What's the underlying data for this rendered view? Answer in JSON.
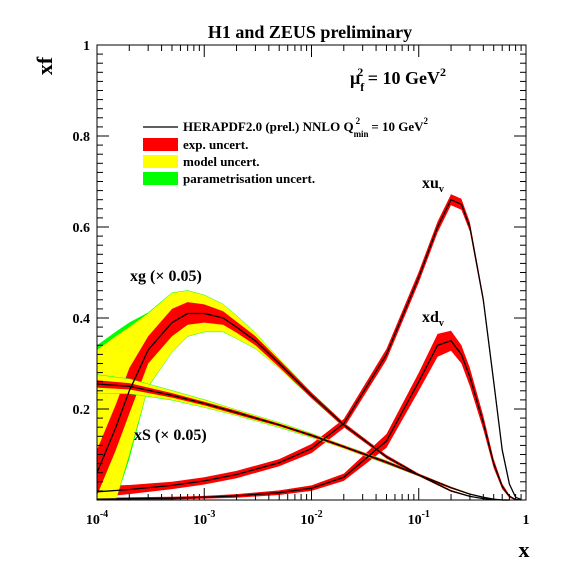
{
  "chart_data": {
    "type": "line",
    "title": "H1 and ZEUS preliminary",
    "scale_label": {
      "prefix": "μ",
      "sub": "f",
      "sup": "2",
      "text": " = 10 GeV",
      "unit_sup": "2"
    },
    "xlabel": "x",
    "ylabel": "xf",
    "x_scale": "log",
    "xlim": [
      0.0001,
      1
    ],
    "ylim": [
      0,
      1
    ],
    "x_ticks": [
      {
        "value": 0.0001,
        "base": "10",
        "exp": "-4"
      },
      {
        "value": 0.001,
        "base": "10",
        "exp": "-3"
      },
      {
        "value": 0.01,
        "base": "10",
        "exp": "-2"
      },
      {
        "value": 0.1,
        "base": "10",
        "exp": "-1"
      },
      {
        "value": 1,
        "base": "1",
        "exp": ""
      }
    ],
    "y_ticks": [
      {
        "value": 0.2,
        "label": "0.2"
      },
      {
        "value": 0.4,
        "label": "0.4"
      },
      {
        "value": 0.6,
        "label": "0.6"
      },
      {
        "value": 0.8,
        "label": "0.8"
      },
      {
        "value": 1.0,
        "label": "1"
      }
    ],
    "legend": {
      "position": "top-left",
      "entries": [
        {
          "kind": "line",
          "color": "#000000",
          "text": "HERAPDF2.0 (prel.) NNLO Q",
          "sub": "min",
          "sup": "2",
          "suffix": " = 10 GeV",
          "suffix_sup": "2"
        },
        {
          "kind": "box",
          "color": "#ff0000",
          "text": "exp. uncert."
        },
        {
          "kind": "box",
          "color": "#ffff00",
          "text": "model uncert."
        },
        {
          "kind": "box",
          "color": "#00ff00",
          "text": "parametrisation uncert."
        }
      ]
    },
    "colors": {
      "exp": "#ff0000",
      "model": "#ffff00",
      "param": "#00ff00",
      "central": "#000000"
    },
    "series": [
      {
        "id": "xuv",
        "label": "xu",
        "label_sub": "v",
        "x": [
          0.0001,
          0.0002,
          0.0005,
          0.001,
          0.002,
          0.005,
          0.01,
          0.02,
          0.05,
          0.1,
          0.15,
          0.2,
          0.25,
          0.3,
          0.4,
          0.5,
          0.6,
          0.7,
          0.8,
          0.9
        ],
        "central": [
          0.018,
          0.023,
          0.032,
          0.042,
          0.056,
          0.082,
          0.113,
          0.168,
          0.32,
          0.49,
          0.6,
          0.66,
          0.65,
          0.6,
          0.44,
          0.26,
          0.11,
          0.035,
          0.006,
          0.001
        ],
        "exp": [
          0.012,
          0.01,
          0.008,
          0.008,
          0.008,
          0.008,
          0.01,
          0.01,
          0.012,
          0.012,
          0.012,
          0.012,
          0.012,
          0.01,
          0.008,
          0.007,
          0.005,
          0.003,
          0.001,
          0.0
        ],
        "model": [
          0.003,
          0.003,
          0.002,
          0.002,
          0.002,
          0.002,
          0.002,
          0.002,
          0.003,
          0.003,
          0.003,
          0.003,
          0.003,
          0.003,
          0.002,
          0.002,
          0.001,
          0.001,
          0.0,
          0.0
        ],
        "param": [
          0.001,
          0.001,
          0.001,
          0.001,
          0.001,
          0.001,
          0.001,
          0.001,
          0.001,
          0.001,
          0.001,
          0.001,
          0.001,
          0.001,
          0.001,
          0.001,
          0.0,
          0.0,
          0.0,
          0.0
        ]
      },
      {
        "id": "xdv",
        "label": "xd",
        "label_sub": "v",
        "x": [
          0.0001,
          0.0002,
          0.0005,
          0.001,
          0.002,
          0.005,
          0.01,
          0.02,
          0.05,
          0.1,
          0.15,
          0.2,
          0.25,
          0.3,
          0.4,
          0.5,
          0.6,
          0.7,
          0.8,
          0.9
        ],
        "central": [
          0.002,
          0.003,
          0.004,
          0.006,
          0.009,
          0.016,
          0.026,
          0.05,
          0.13,
          0.26,
          0.34,
          0.35,
          0.32,
          0.27,
          0.17,
          0.08,
          0.03,
          0.008,
          0.001,
          0.0
        ],
        "exp": [
          0.003,
          0.003,
          0.003,
          0.003,
          0.004,
          0.005,
          0.006,
          0.008,
          0.015,
          0.02,
          0.025,
          0.022,
          0.02,
          0.02,
          0.015,
          0.01,
          0.006,
          0.003,
          0.001,
          0.0
        ],
        "model": [
          0.001,
          0.001,
          0.001,
          0.001,
          0.001,
          0.001,
          0.001,
          0.002,
          0.003,
          0.004,
          0.005,
          0.005,
          0.005,
          0.004,
          0.003,
          0.002,
          0.001,
          0.001,
          0.0,
          0.0
        ],
        "param": [
          0.0,
          0.0,
          0.0,
          0.0,
          0.0,
          0.0,
          0.0,
          0.0,
          0.001,
          0.001,
          0.001,
          0.001,
          0.001,
          0.001,
          0.001,
          0.0,
          0.0,
          0.0,
          0.0,
          0.0
        ]
      },
      {
        "id": "xg",
        "label": "xg (× 0.05)",
        "x": [
          0.0001,
          0.00015,
          0.0002,
          0.0003,
          0.0005,
          0.0007,
          0.001,
          0.0015,
          0.002,
          0.003,
          0.005,
          0.01,
          0.02,
          0.05,
          0.1,
          0.2,
          0.3,
          0.4,
          0.5,
          0.6,
          0.7
        ],
        "central": [
          0.06,
          0.16,
          0.24,
          0.33,
          0.39,
          0.41,
          0.41,
          0.4,
          0.38,
          0.35,
          0.3,
          0.23,
          0.165,
          0.095,
          0.055,
          0.02,
          0.008,
          0.003,
          0.001,
          0.0,
          0.0
        ],
        "exp": [
          0.05,
          0.05,
          0.05,
          0.03,
          0.03,
          0.025,
          0.02,
          0.015,
          0.012,
          0.01,
          0.008,
          0.006,
          0.005,
          0.004,
          0.003,
          0.002,
          0.001,
          0.0,
          0.0,
          0.0,
          0.0
        ],
        "model": [
          0.27,
          0.2,
          0.14,
          0.08,
          0.065,
          0.05,
          0.04,
          0.03,
          0.025,
          0.017,
          0.01,
          0.006,
          0.004,
          0.003,
          0.002,
          0.001,
          0.001,
          0.0,
          0.0,
          0.0,
          0.0
        ],
        "param": [
          0.28,
          0.21,
          0.15,
          0.082,
          0.066,
          0.051,
          0.041,
          0.031,
          0.026,
          0.018,
          0.011,
          0.007,
          0.005,
          0.003,
          0.002,
          0.001,
          0.001,
          0.0,
          0.0,
          0.0,
          0.0
        ]
      },
      {
        "id": "xs",
        "label": "xS (× 0.05)",
        "x": [
          0.0001,
          0.0002,
          0.0005,
          0.001,
          0.002,
          0.005,
          0.01,
          0.02,
          0.05,
          0.1,
          0.2,
          0.3,
          0.4,
          0.5,
          0.6,
          0.7
        ],
        "central": [
          0.255,
          0.25,
          0.23,
          0.212,
          0.192,
          0.165,
          0.142,
          0.117,
          0.083,
          0.055,
          0.027,
          0.013,
          0.006,
          0.002,
          0.0,
          0.0
        ],
        "exp": [
          0.008,
          0.007,
          0.005,
          0.004,
          0.004,
          0.003,
          0.003,
          0.003,
          0.003,
          0.003,
          0.002,
          0.001,
          0.001,
          0.0,
          0.0,
          0.0
        ],
        "model": [
          0.02,
          0.016,
          0.01,
          0.008,
          0.006,
          0.005,
          0.004,
          0.004,
          0.003,
          0.003,
          0.002,
          0.001,
          0.001,
          0.0,
          0.0,
          0.0
        ],
        "param": [
          0.021,
          0.017,
          0.011,
          0.009,
          0.007,
          0.006,
          0.005,
          0.004,
          0.004,
          0.003,
          0.002,
          0.001,
          0.001,
          0.0,
          0.0,
          0.0
        ]
      }
    ]
  }
}
